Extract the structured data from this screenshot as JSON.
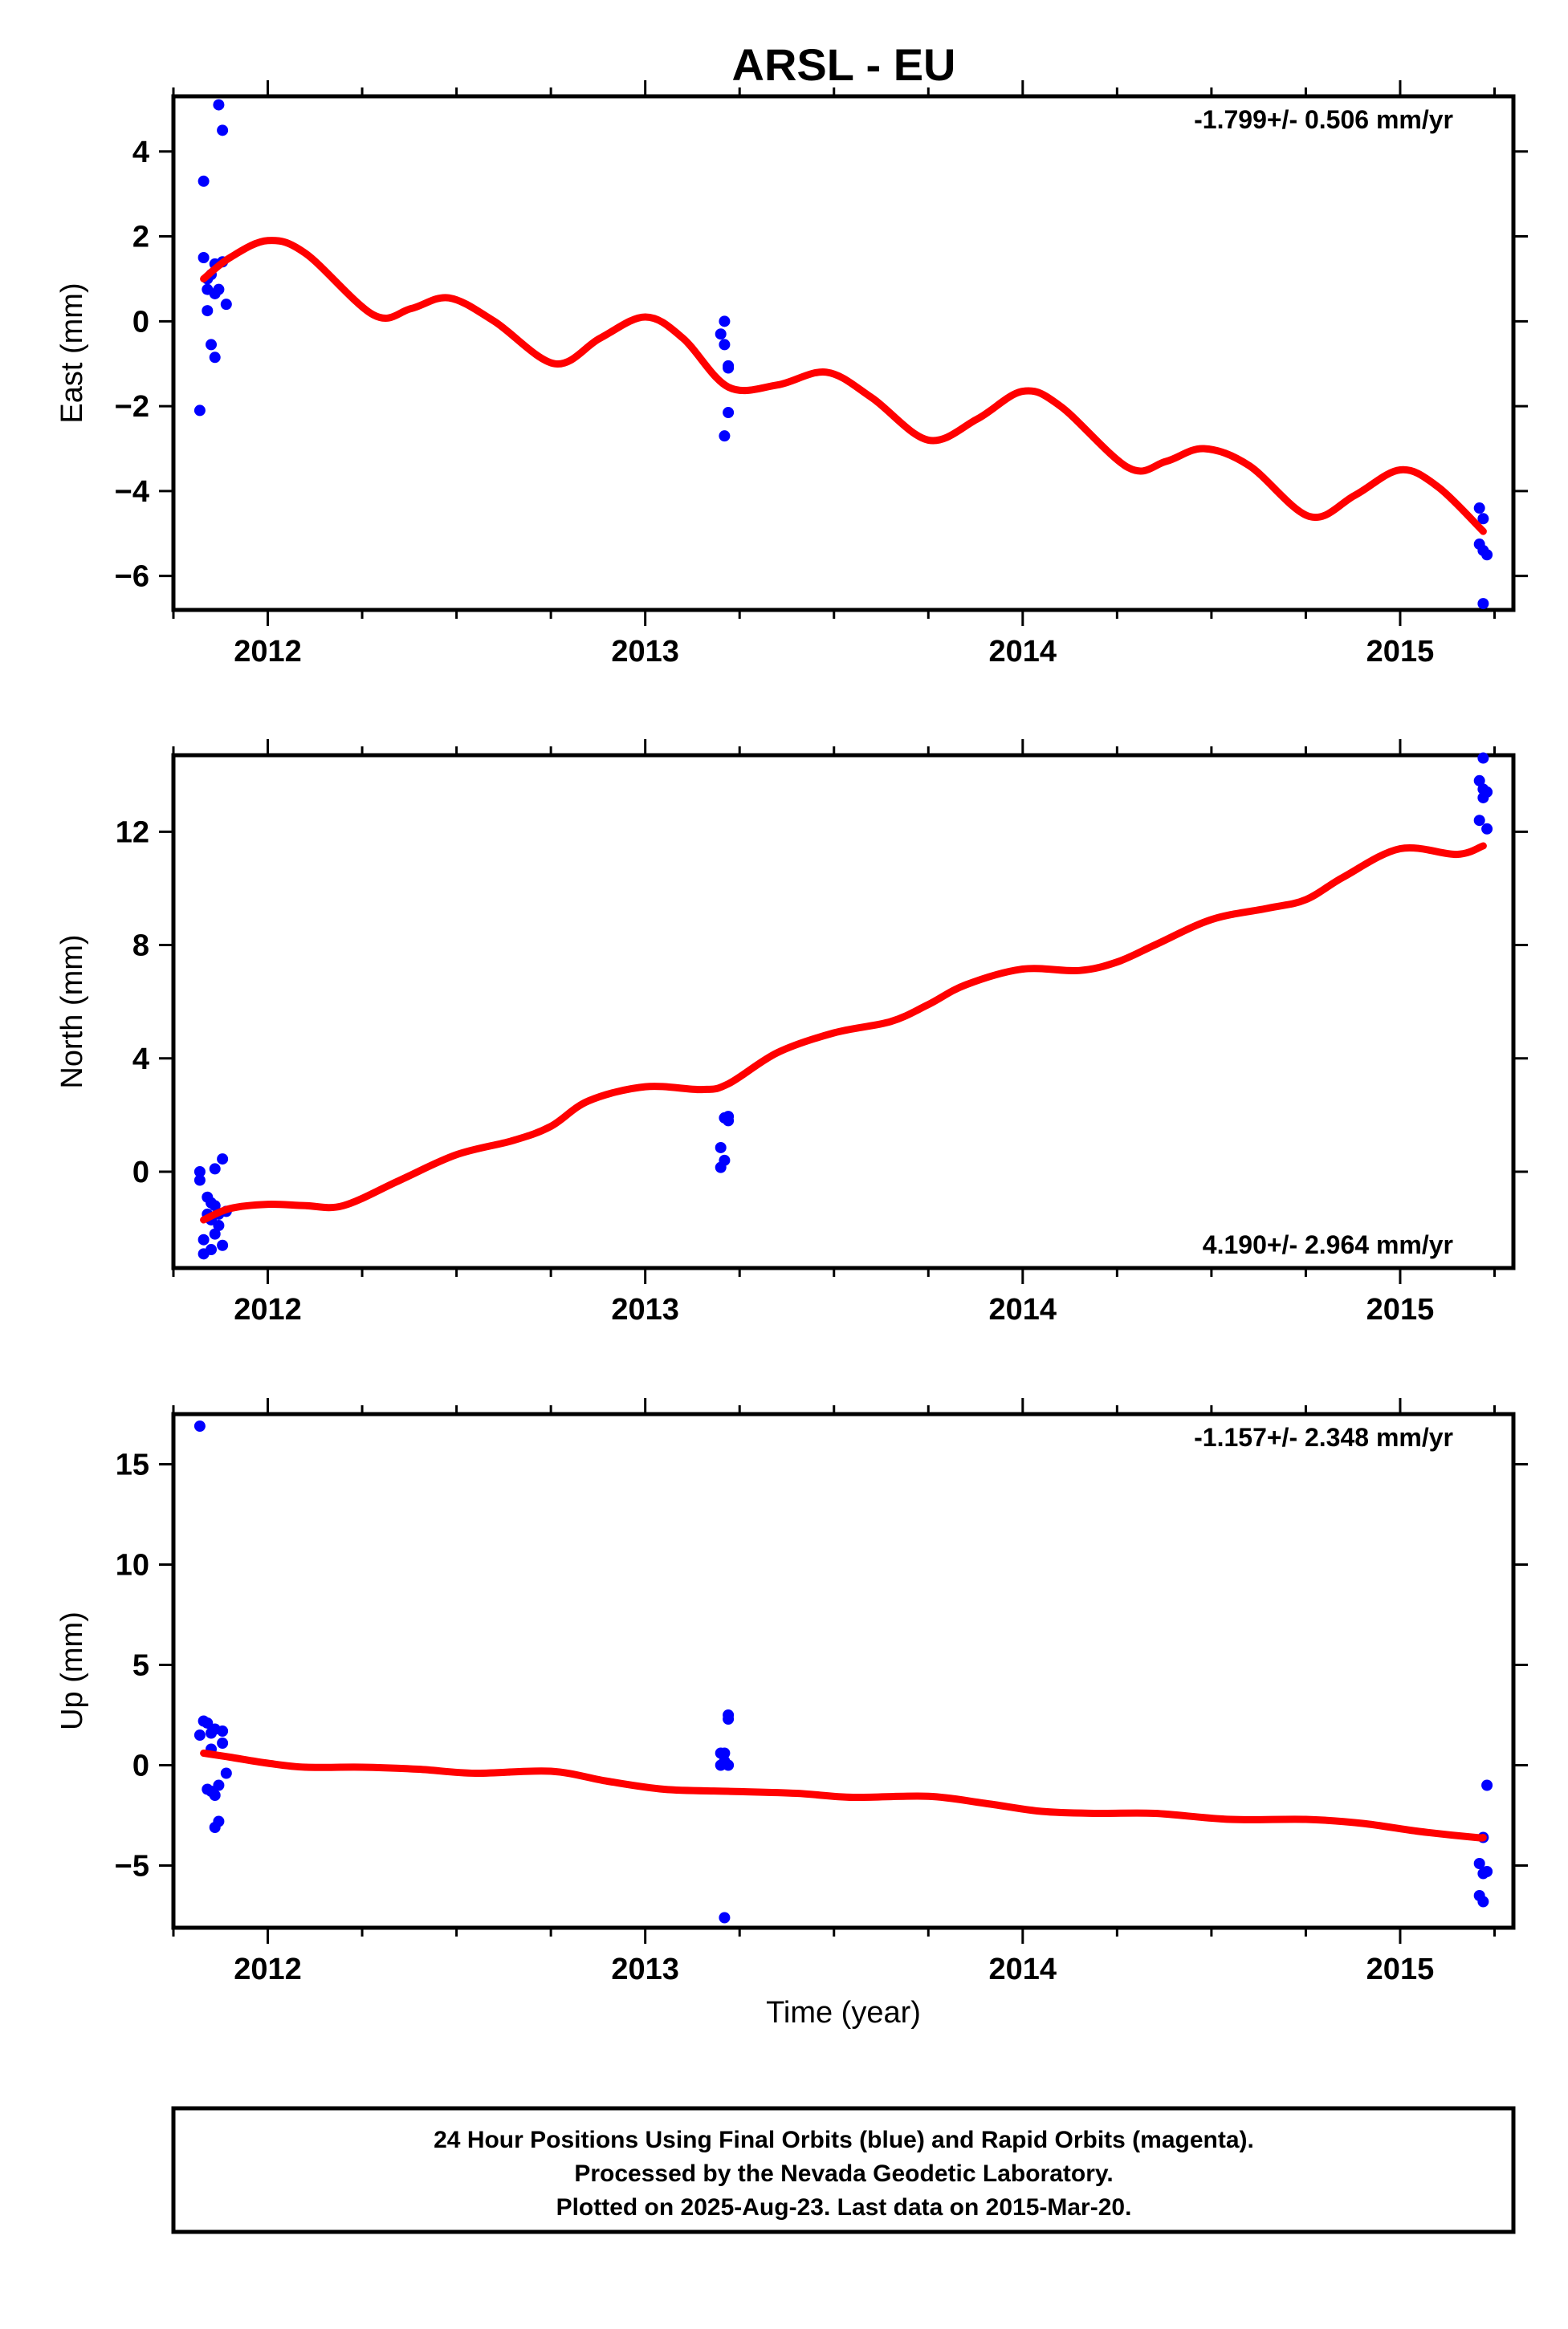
{
  "title": "ARSL - EU",
  "footer": {
    "lines": [
      "24 Hour Positions Using Final Orbits (blue) and Rapid Orbits (magenta).",
      "Processed by the Nevada Geodetic Laboratory.",
      "Plotted on 2025-Aug-23. Last data on 2015-Mar-20."
    ]
  },
  "colors": {
    "points": "#0000ff",
    "model": "#ff0000",
    "frame": "#000000"
  },
  "chart_data": [
    {
      "type": "scatter",
      "title": "",
      "xlabel": "",
      "ylabel": "East (mm)",
      "rate": "-1.799+/- 0.506 mm/yr",
      "rate_position": "top-right",
      "xlim": [
        2011.75,
        2015.3
      ],
      "ylim": [
        -6.8,
        5.3
      ],
      "xticks": [
        2012,
        2013,
        2014,
        2015
      ],
      "xtick_labels": [
        "2012",
        "2013",
        "2014",
        "2015"
      ],
      "yticks": [
        -6,
        -4,
        -2,
        0,
        2,
        4
      ],
      "ytick_labels": [
        "−6",
        "−4",
        "−2",
        "0",
        "2",
        "4"
      ],
      "series": [
        {
          "kind": "points",
          "x": [
            2011.82,
            2011.83,
            2011.83,
            2011.84,
            2011.84,
            2011.84,
            2011.85,
            2011.85,
            2011.86,
            2011.86,
            2011.86,
            2011.87,
            2011.87,
            2011.88,
            2011.88,
            2011.89,
            2013.2,
            2013.21,
            2013.21,
            2013.21,
            2013.22,
            2013.22,
            2013.22,
            2015.21,
            2015.21,
            2015.22,
            2015.22,
            2015.22,
            2015.23
          ],
          "y": [
            -2.1,
            3.3,
            1.5,
            0.25,
            1.0,
            0.75,
            1.1,
            -0.55,
            -0.85,
            0.65,
            1.35,
            5.1,
            0.75,
            4.5,
            1.4,
            0.4,
            -0.3,
            0.0,
            -0.55,
            -2.7,
            -1.05,
            -2.15,
            -1.1,
            -4.4,
            -5.25,
            -6.65,
            -4.65,
            -5.4,
            -5.5
          ]
        },
        {
          "kind": "model",
          "x": [
            2011.83,
            2011.9,
            2012.0,
            2012.1,
            2012.28,
            2012.38,
            2012.48,
            2012.6,
            2012.76,
            2012.88,
            2013.0,
            2013.1,
            2013.22,
            2013.35,
            2013.48,
            2013.6,
            2013.75,
            2013.88,
            2014.0,
            2014.1,
            2014.28,
            2014.38,
            2014.48,
            2014.6,
            2014.76,
            2014.88,
            2015.0,
            2015.1,
            2015.22
          ],
          "y": [
            1.0,
            1.5,
            1.9,
            1.6,
            0.15,
            0.3,
            0.55,
            0.0,
            -1.0,
            -0.4,
            0.1,
            -0.4,
            -1.55,
            -1.5,
            -1.2,
            -1.8,
            -2.8,
            -2.3,
            -1.65,
            -2.0,
            -3.45,
            -3.3,
            -3.0,
            -3.4,
            -4.6,
            -4.1,
            -3.5,
            -3.9,
            -4.95
          ]
        }
      ]
    },
    {
      "type": "scatter",
      "title": "",
      "xlabel": "",
      "ylabel": "North (mm)",
      "rate": "4.190+/- 2.964 mm/yr",
      "rate_position": "bottom-right",
      "xlim": [
        2011.75,
        2015.3
      ],
      "ylim": [
        -3.4,
        14.7
      ],
      "xticks": [
        2012,
        2013,
        2014,
        2015
      ],
      "xtick_labels": [
        "2012",
        "2013",
        "2014",
        "2015"
      ],
      "yticks": [
        0,
        4,
        8,
        12
      ],
      "ytick_labels": [
        "0",
        "4",
        "8",
        "12"
      ],
      "series": [
        {
          "kind": "points",
          "x": [
            2011.82,
            2011.82,
            2011.83,
            2011.83,
            2011.84,
            2011.84,
            2011.85,
            2011.85,
            2011.85,
            2011.86,
            2011.86,
            2011.86,
            2011.87,
            2011.87,
            2011.88,
            2011.88,
            2011.89,
            2013.2,
            2013.2,
            2013.21,
            2013.21,
            2013.22,
            2013.22,
            2015.21,
            2015.21,
            2015.22,
            2015.22,
            2015.22,
            2015.23,
            2015.23
          ],
          "y": [
            0.0,
            -0.3,
            -2.4,
            -2.9,
            -0.9,
            -1.5,
            -2.75,
            -1.7,
            -1.1,
            0.1,
            -2.2,
            -1.2,
            -1.9,
            -1.5,
            -2.6,
            0.45,
            -1.4,
            0.15,
            0.85,
            1.9,
            0.4,
            1.8,
            1.95,
            13.8,
            12.4,
            13.2,
            13.5,
            14.6,
            12.1,
            13.4
          ]
        },
        {
          "kind": "model",
          "x": [
            2011.83,
            2011.9,
            2012.0,
            2012.1,
            2012.2,
            2012.35,
            2012.5,
            2012.65,
            2012.75,
            2012.85,
            2013.0,
            2013.15,
            2013.22,
            2013.35,
            2013.5,
            2013.65,
            2013.75,
            2013.85,
            2014.0,
            2014.15,
            2014.25,
            2014.35,
            2014.5,
            2014.65,
            2014.75,
            2014.85,
            2015.0,
            2015.15,
            2015.22
          ],
          "y": [
            -1.7,
            -1.3,
            -1.15,
            -1.2,
            -1.2,
            -0.3,
            0.6,
            1.1,
            1.6,
            2.5,
            3.0,
            2.9,
            3.1,
            4.2,
            4.9,
            5.3,
            5.9,
            6.6,
            7.15,
            7.1,
            7.4,
            8.0,
            8.9,
            9.3,
            9.6,
            10.4,
            11.4,
            11.2,
            11.5
          ]
        }
      ]
    },
    {
      "type": "scatter",
      "title": "",
      "xlabel": "Time (year)",
      "ylabel": "Up (mm)",
      "rate": "-1.157+/- 2.348 mm/yr",
      "rate_position": "top-right",
      "xlim": [
        2011.75,
        2015.3
      ],
      "ylim": [
        -8.1,
        17.5
      ],
      "xticks": [
        2012,
        2013,
        2014,
        2015
      ],
      "xtick_labels": [
        "2012",
        "2013",
        "2014",
        "2015"
      ],
      "yticks": [
        -5,
        0,
        5,
        10,
        15
      ],
      "ytick_labels": [
        "−5",
        "0",
        "5",
        "10",
        "15"
      ],
      "series": [
        {
          "kind": "points",
          "x": [
            2011.82,
            2011.82,
            2011.83,
            2011.84,
            2011.84,
            2011.85,
            2011.85,
            2011.85,
            2011.86,
            2011.86,
            2011.86,
            2011.87,
            2011.87,
            2011.88,
            2011.88,
            2011.89,
            2013.2,
            2013.2,
            2013.21,
            2013.21,
            2013.21,
            2013.22,
            2013.22,
            2013.22,
            2015.21,
            2015.21,
            2015.22,
            2015.22,
            2015.22,
            2015.23,
            2015.23
          ],
          "y": [
            16.9,
            1.5,
            2.2,
            -1.2,
            2.1,
            -1.3,
            0.8,
            1.6,
            -3.1,
            -1.5,
            1.8,
            -1.0,
            -2.8,
            1.7,
            1.1,
            -0.4,
            0.6,
            0.0,
            -7.6,
            0.2,
            0.6,
            0.0,
            2.3,
            2.5,
            -4.9,
            -6.5,
            -5.4,
            -3.6,
            -6.8,
            -1.0,
            -5.3
          ]
        },
        {
          "kind": "model",
          "x": [
            2011.83,
            2011.9,
            2012.0,
            2012.1,
            2012.25,
            2012.4,
            2012.55,
            2012.75,
            2012.9,
            2013.05,
            2013.22,
            2013.4,
            2013.55,
            2013.75,
            2013.9,
            2014.05,
            2014.2,
            2014.35,
            2014.55,
            2014.75,
            2014.9,
            2015.05,
            2015.2,
            2015.22
          ],
          "y": [
            0.6,
            0.4,
            0.1,
            -0.1,
            -0.1,
            -0.2,
            -0.4,
            -0.3,
            -0.8,
            -1.2,
            -1.3,
            -1.4,
            -1.6,
            -1.55,
            -1.9,
            -2.3,
            -2.4,
            -2.4,
            -2.7,
            -2.7,
            -2.9,
            -3.3,
            -3.6,
            -3.6
          ]
        }
      ]
    }
  ]
}
